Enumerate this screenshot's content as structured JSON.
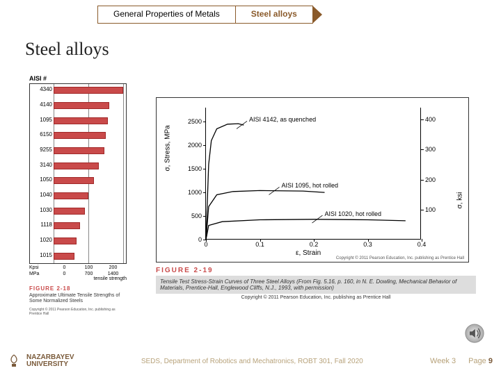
{
  "breadcrumb": {
    "a": "General Properties of Metals",
    "b": "Steel alloys"
  },
  "title": "Steel alloys",
  "fig218": {
    "header": "AISI #",
    "items": [
      {
        "id": "4340",
        "val": 200
      },
      {
        "id": "4140",
        "val": 160
      },
      {
        "id": "1095",
        "val": 155
      },
      {
        "id": "6150",
        "val": 150
      },
      {
        "id": "9255",
        "val": 145
      },
      {
        "id": "3140",
        "val": 130
      },
      {
        "id": "1050",
        "val": 115
      },
      {
        "id": "1040",
        "val": 100
      },
      {
        "id": "1030",
        "val": 90
      },
      {
        "id": "1118",
        "val": 75
      },
      {
        "id": "1020",
        "val": 65
      },
      {
        "id": "1015",
        "val": 60
      }
    ],
    "xmax": 200,
    "kpsi_ticks": [
      "0",
      "100",
      "200"
    ],
    "mpa_ticks": [
      "0",
      "700",
      "1400"
    ],
    "xlabel": "tensile strength",
    "kpsi_lbl": "Kpsi",
    "mpa_lbl": "MPa",
    "caption_num": "FIGURE 2-18",
    "caption_txt": "Approximate Ultimate Tensile Strengths of Some Normalized Steels",
    "copyright": "Copyright © 2011 Pearson Education, Inc. publishing as Prentice Hall"
  },
  "fig219": {
    "y_title": "σ, Stress, MPa",
    "y2_title": "σ, ksi",
    "x_title": "ε, Strain",
    "y_ticks": [
      0,
      500,
      1000,
      1500,
      2000,
      2500
    ],
    "y_max": 2800,
    "y2_ticks": [
      100,
      200,
      300,
      400
    ],
    "y2_max": 440,
    "x_ticks": [
      0,
      0.1,
      0.2,
      0.3,
      0.4
    ],
    "x_max": 0.4,
    "curves": {
      "c1": {
        "label": "AISI 4142, as quenched",
        "pts": [
          [
            0,
            0
          ],
          [
            0.005,
            1600
          ],
          [
            0.01,
            2100
          ],
          [
            0.02,
            2350
          ],
          [
            0.04,
            2450
          ],
          [
            0.06,
            2460
          ],
          [
            0.07,
            2430
          ]
        ]
      },
      "c2": {
        "label": "AISI 1095, hot rolled",
        "pts": [
          [
            0,
            0
          ],
          [
            0.005,
            700
          ],
          [
            0.02,
            950
          ],
          [
            0.05,
            1020
          ],
          [
            0.1,
            1040
          ],
          [
            0.18,
            1030
          ],
          [
            0.22,
            1000
          ]
        ]
      },
      "c3": {
        "label": "AISI 1020, hot rolled",
        "pts": [
          [
            0,
            0
          ],
          [
            0.005,
            300
          ],
          [
            0.03,
            380
          ],
          [
            0.1,
            420
          ],
          [
            0.2,
            430
          ],
          [
            0.3,
            420
          ],
          [
            0.37,
            400
          ]
        ]
      }
    },
    "label_pos": {
      "c1": [
        0.08,
        2470
      ],
      "c2": [
        0.14,
        1070
      ],
      "c3": [
        0.22,
        470
      ]
    },
    "plot_copy": "Copyright © 2011 Pearson Education, Inc. publishing as Prentice Hall",
    "caption_num": "FIGURE 2-19",
    "caption_txt": "Tensile Test Stress-Strain Curves of Three Steel Alloys  (From Fig. 5.16, p. 160, in N. E. Dowling, Mechanical Behavior of Materials, Prentice-Hall, Englewood Cliffs, N.J., 1993, with permission)",
    "copyright2": "Copyright © 2011 Pearson Education, Inc. publishing as Prentice Hall"
  },
  "footer": {
    "uni1": "NAZARBAYEV",
    "uni2": "UNIVERSITY",
    "dept": "SEDS, Department of Robotics and Mechatronics, ROBT 301, Fall 2020",
    "week": "Week 3",
    "page_lbl": "Page",
    "page_num": "9"
  },
  "colors": {
    "bar": "#c94a4a",
    "accent": "#8a5a2a"
  }
}
